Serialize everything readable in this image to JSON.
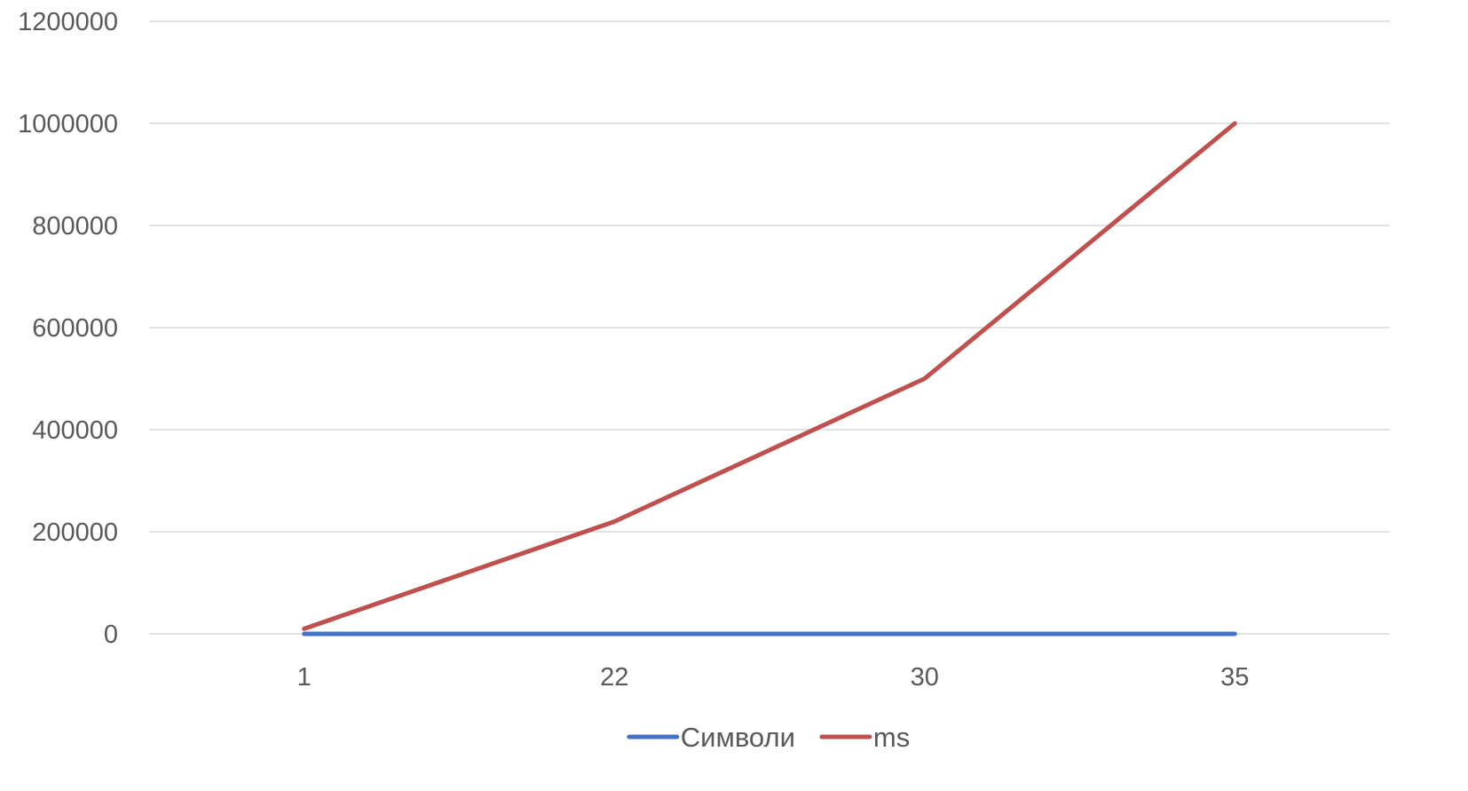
{
  "chart_data": {
    "type": "line",
    "categories": [
      "1",
      "22",
      "30",
      "35"
    ],
    "ylim": [
      0,
      1200000
    ],
    "yticks": [
      0,
      200000,
      400000,
      600000,
      800000,
      1000000,
      1200000
    ],
    "grid": true,
    "legend_position": "bottom",
    "series": [
      {
        "name": "Символи",
        "values": [
          1,
          22,
          30,
          35
        ],
        "color": "#4472C4"
      },
      {
        "name": "ms",
        "values": [
          10000,
          220000,
          500000,
          1000000
        ],
        "color": "#C0504D"
      }
    ]
  }
}
